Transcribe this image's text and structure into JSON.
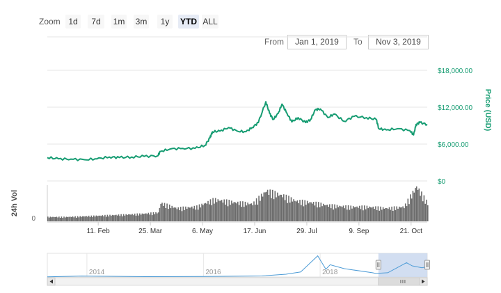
{
  "toolbar": {
    "zoom_label": "Zoom",
    "buttons": [
      "1d",
      "7d",
      "1m",
      "3m",
      "1y",
      "YTD",
      "ALL"
    ],
    "active": "YTD"
  },
  "range": {
    "from_label": "From",
    "from_value": "Jan 1, 2019",
    "to_label": "To",
    "to_value": "Nov 3, 2019"
  },
  "colors": {
    "price_line": "#169c72",
    "volume": "#6b6b6b",
    "navigator_line": "#4c9bd6",
    "navigator_mask": "#c7d6ee",
    "grid": "#e6e6e6"
  },
  "chart_data": {
    "type": "line",
    "x_type": "date",
    "x_range": [
      "2019-01-01",
      "2019-11-03"
    ],
    "x_ticks": [
      {
        "date": "2019-02-11",
        "label": "11. Feb"
      },
      {
        "date": "2019-03-25",
        "label": "25. Mar"
      },
      {
        "date": "2019-05-06",
        "label": "6. May"
      },
      {
        "date": "2019-06-17",
        "label": "17. Jun"
      },
      {
        "date": "2019-07-29",
        "label": "29. Jul"
      },
      {
        "date": "2019-09-09",
        "label": "9. Sep"
      },
      {
        "date": "2019-10-21",
        "label": "21. Oct"
      }
    ],
    "y_label": "Price (USD)",
    "y_range": [
      0,
      18000
    ],
    "y_ticks": [
      {
        "value": 0,
        "label": "$0"
      },
      {
        "value": 6000,
        "label": "$6,000.00"
      },
      {
        "value": 12000,
        "label": "$12,000.00"
      },
      {
        "value": 18000,
        "label": "$18,000.00"
      }
    ],
    "grid": true,
    "price_series": [
      [
        "2019-01-01",
        3800
      ],
      [
        "2019-01-10",
        3600
      ],
      [
        "2019-01-20",
        3550
      ],
      [
        "2019-01-31",
        3450
      ],
      [
        "2019-02-10",
        3600
      ],
      [
        "2019-02-20",
        3900
      ],
      [
        "2019-02-28",
        3800
      ],
      [
        "2019-03-10",
        3900
      ],
      [
        "2019-03-20",
        4000
      ],
      [
        "2019-03-31",
        4100
      ],
      [
        "2019-04-02",
        4800
      ],
      [
        "2019-04-10",
        5200
      ],
      [
        "2019-04-20",
        5300
      ],
      [
        "2019-04-30",
        5300
      ],
      [
        "2019-05-08",
        5800
      ],
      [
        "2019-05-12",
        7000
      ],
      [
        "2019-05-14",
        8000
      ],
      [
        "2019-05-20",
        8100
      ],
      [
        "2019-05-27",
        8700
      ],
      [
        "2019-06-03",
        8100
      ],
      [
        "2019-06-10",
        8000
      ],
      [
        "2019-06-15",
        8700
      ],
      [
        "2019-06-20",
        9500
      ],
      [
        "2019-06-26",
        12900
      ],
      [
        "2019-06-29",
        11000
      ],
      [
        "2019-07-02",
        10000
      ],
      [
        "2019-07-06",
        11000
      ],
      [
        "2019-07-09",
        12500
      ],
      [
        "2019-07-13",
        11000
      ],
      [
        "2019-07-17",
        9600
      ],
      [
        "2019-07-22",
        10300
      ],
      [
        "2019-07-28",
        9500
      ],
      [
        "2019-08-01",
        10000
      ],
      [
        "2019-08-05",
        11600
      ],
      [
        "2019-08-09",
        11700
      ],
      [
        "2019-08-15",
        10300
      ],
      [
        "2019-08-20",
        10900
      ],
      [
        "2019-08-28",
        9700
      ],
      [
        "2019-09-05",
        10500
      ],
      [
        "2019-09-15",
        10300
      ],
      [
        "2019-09-23",
        10000
      ],
      [
        "2019-09-25",
        8500
      ],
      [
        "2019-10-01",
        8300
      ],
      [
        "2019-10-10",
        8500
      ],
      [
        "2019-10-20",
        8200
      ],
      [
        "2019-10-23",
        7500
      ],
      [
        "2019-10-25",
        9200
      ],
      [
        "2019-10-28",
        9500
      ],
      [
        "2019-11-03",
        9200
      ]
    ],
    "volume_panel": {
      "label": "24h Vol",
      "y_ticks": [
        {
          "value": 0,
          "label": "0"
        }
      ]
    },
    "volume_series": [
      [
        "2019-01-01",
        6
      ],
      [
        "2019-01-15",
        6
      ],
      [
        "2019-02-01",
        7
      ],
      [
        "2019-02-15",
        8
      ],
      [
        "2019-03-01",
        9
      ],
      [
        "2019-03-15",
        10
      ],
      [
        "2019-03-31",
        12
      ],
      [
        "2019-04-02",
        25
      ],
      [
        "2019-04-15",
        18
      ],
      [
        "2019-05-01",
        20
      ],
      [
        "2019-05-15",
        30
      ],
      [
        "2019-06-01",
        26
      ],
      [
        "2019-06-15",
        24
      ],
      [
        "2019-06-26",
        42
      ],
      [
        "2019-07-10",
        35
      ],
      [
        "2019-07-20",
        28
      ],
      [
        "2019-08-01",
        26
      ],
      [
        "2019-08-15",
        22
      ],
      [
        "2019-09-01",
        20
      ],
      [
        "2019-09-15",
        20
      ],
      [
        "2019-10-01",
        18
      ],
      [
        "2019-10-15",
        20
      ],
      [
        "2019-10-25",
        48
      ],
      [
        "2019-11-03",
        25
      ]
    ],
    "navigator": {
      "year_labels": [
        "2014",
        "2016",
        "2018"
      ],
      "series": [
        [
          "2013-04-28",
          140
        ],
        [
          "2013-12-01",
          900
        ],
        [
          "2014-06-01",
          600
        ],
        [
          "2015-01-01",
          300
        ],
        [
          "2016-01-01",
          430
        ],
        [
          "2016-12-31",
          960
        ],
        [
          "2017-06-01",
          2500
        ],
        [
          "2017-09-01",
          4500
        ],
        [
          "2017-12-17",
          19000
        ],
        [
          "2018-02-06",
          7000
        ],
        [
          "2018-03-05",
          11000
        ],
        [
          "2018-06-01",
          7500
        ],
        [
          "2018-11-25",
          3800
        ],
        [
          "2018-12-15",
          3200
        ],
        [
          "2019-03-01",
          3800
        ],
        [
          "2019-06-26",
          12900
        ],
        [
          "2019-08-01",
          10000
        ],
        [
          "2019-10-01",
          8300
        ],
        [
          "2019-11-03",
          9200
        ]
      ],
      "selection": [
        "2019-01-01",
        "2019-11-03"
      ]
    }
  }
}
